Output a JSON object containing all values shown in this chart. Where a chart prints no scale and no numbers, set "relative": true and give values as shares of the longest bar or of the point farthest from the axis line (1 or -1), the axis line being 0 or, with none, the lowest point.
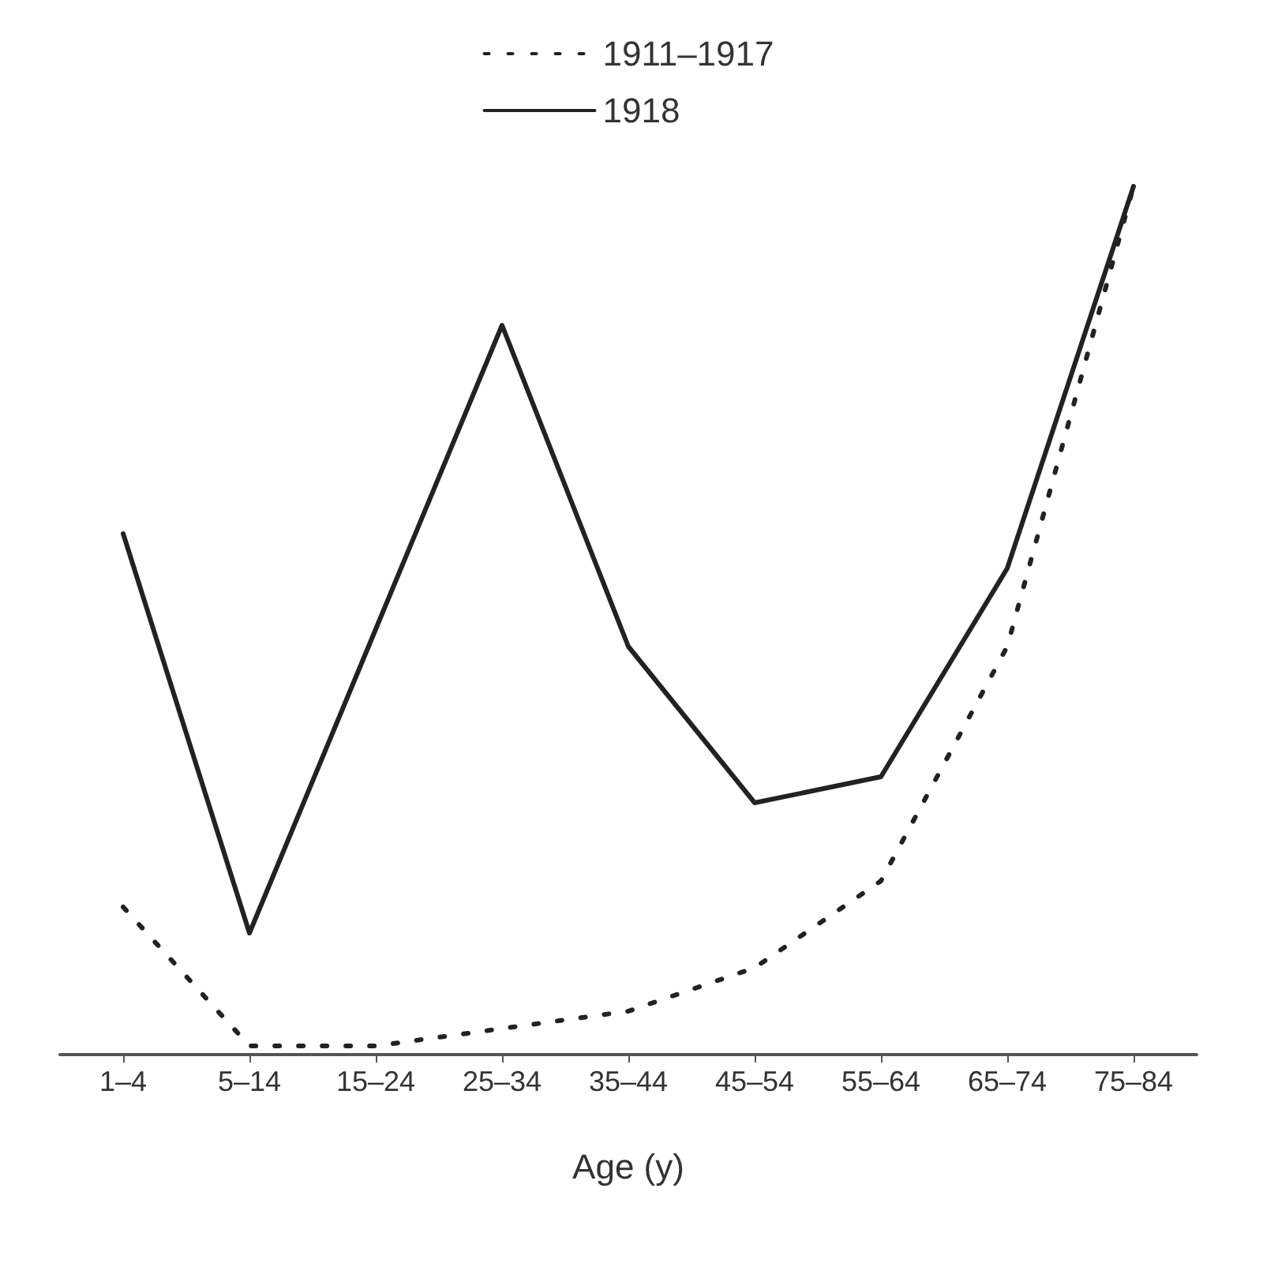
{
  "chart_data": {
    "type": "line",
    "relative": true,
    "xlabel": "Age (y)",
    "categories": [
      "1–4",
      "5–14",
      "15–24",
      "25–34",
      "35–44",
      "45–54",
      "55–64",
      "65–74",
      "75–84"
    ],
    "series": [
      {
        "name": "1911–1917",
        "color": "#222222",
        "line_style": "dotted",
        "values": [
          0.17,
          0.01,
          0.01,
          0.03,
          0.05,
          0.1,
          0.2,
          0.47,
          1
        ]
      },
      {
        "name": "1918",
        "color": "#222222",
        "line_style": "solid",
        "values": [
          0.6,
          0.14,
          0.49,
          0.84,
          0.47,
          0.29,
          0.32,
          0.56,
          1
        ]
      }
    ],
    "legend": "top",
    "marker": "none",
    "grid": false
  }
}
